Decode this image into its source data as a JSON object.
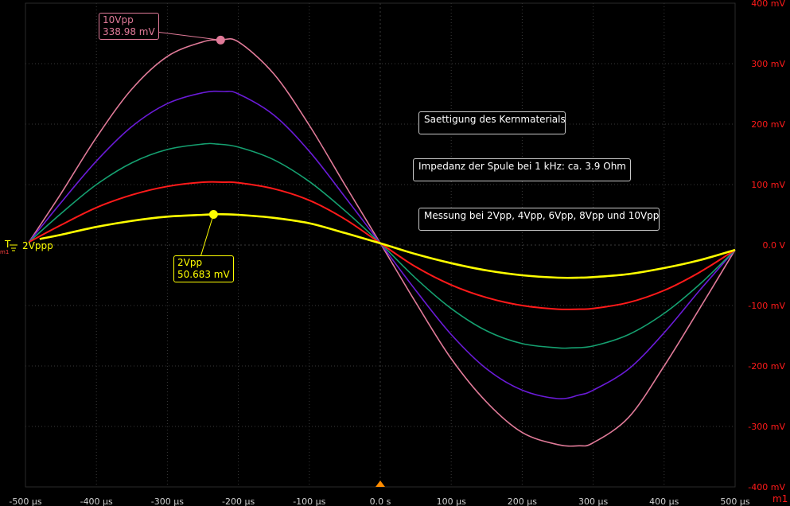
{
  "chart_data": {
    "type": "line",
    "xlabel": "",
    "ylabel": "",
    "xlim": [
      -500,
      500
    ],
    "ylim": [
      -400,
      400
    ],
    "x_ticks": [
      -500,
      -400,
      -300,
      -200,
      -100,
      0,
      100,
      200,
      300,
      400,
      500
    ],
    "x_tick_labels": [
      "-500 µs",
      "-400 µs",
      "-300 µs",
      "-200 µs",
      "-100 µs",
      "0.0 s",
      "100 µs",
      "200 µs",
      "300 µs",
      "400 µs",
      "500 µs"
    ],
    "y_ticks": [
      400,
      300,
      200,
      100,
      0,
      -100,
      -200,
      -300,
      -400
    ],
    "y_tick_labels": [
      "400 mV",
      "300 mV",
      "200 mV",
      "100 mV",
      "0.0 V",
      "-100 mV",
      "-200 mV",
      "-300 mV",
      "-400 mV"
    ],
    "grid": true,
    "series": [
      {
        "name": "2Vpp",
        "color": "#ffff00",
        "x": [
          -480,
          -450,
          -400,
          -350,
          -300,
          -250,
          -230,
          -200,
          -150,
          -100,
          -50,
          0,
          50,
          100,
          150,
          200,
          250,
          280,
          300,
          350,
          400,
          450,
          500
        ],
        "y": [
          10,
          17,
          30,
          40,
          47,
          50,
          51,
          50,
          45,
          36,
          20,
          3,
          -15,
          -30,
          -42,
          -50,
          -54,
          -54,
          -53,
          -48,
          -38,
          -25,
          -8
        ]
      },
      {
        "name": "4Vpp",
        "color": "#ff1a1a",
        "x": [
          -495,
          -450,
          -400,
          -350,
          -300,
          -250,
          -220,
          -200,
          -150,
          -100,
          -50,
          0,
          50,
          100,
          150,
          200,
          250,
          280,
          300,
          350,
          400,
          450,
          500
        ],
        "y": [
          5,
          33,
          62,
          83,
          97,
          104,
          104,
          103,
          93,
          74,
          43,
          3,
          -36,
          -66,
          -87,
          -100,
          -106,
          -106,
          -105,
          -95,
          -75,
          -45,
          -8
        ]
      },
      {
        "name": "6Vpp",
        "color": "#15a070",
        "x": [
          -495,
          -450,
          -400,
          -350,
          -300,
          -250,
          -230,
          -200,
          -150,
          -100,
          -50,
          0,
          50,
          100,
          150,
          200,
          250,
          270,
          300,
          350,
          400,
          450,
          500
        ],
        "y": [
          5,
          52,
          100,
          136,
          158,
          167,
          167,
          162,
          141,
          105,
          57,
          3,
          -55,
          -105,
          -142,
          -163,
          -170,
          -170,
          -167,
          -148,
          -113,
          -65,
          -8
        ]
      },
      {
        "name": "8Vpp",
        "color": "#6a1bd8",
        "x": [
          -495,
          -450,
          -400,
          -350,
          -300,
          -250,
          -220,
          -200,
          -150,
          -100,
          -50,
          0,
          50,
          100,
          150,
          200,
          250,
          280,
          300,
          350,
          400,
          450,
          500
        ],
        "y": [
          5,
          70,
          139,
          196,
          234,
          252,
          254,
          250,
          215,
          155,
          80,
          3,
          -75,
          -148,
          -205,
          -240,
          -254,
          -248,
          -240,
          -205,
          -145,
          -75,
          -8
        ]
      },
      {
        "name": "10Vpp",
        "color": "#e07a98",
        "x": [
          -495,
          -450,
          -400,
          -350,
          -300,
          -250,
          -225,
          -200,
          -150,
          -100,
          -50,
          0,
          50,
          100,
          150,
          200,
          250,
          280,
          300,
          350,
          400,
          450,
          500
        ],
        "y": [
          5,
          85,
          178,
          258,
          312,
          336,
          339,
          336,
          283,
          198,
          100,
          3,
          -95,
          -188,
          -260,
          -310,
          -330,
          -332,
          -327,
          -285,
          -200,
          -105,
          -8
        ]
      }
    ],
    "cursors": [
      {
        "series": "10Vpp",
        "x": -225,
        "y": 338.98
      },
      {
        "series": "2Vpp",
        "x": -235,
        "y": 50.683
      }
    ],
    "trigger_x": 0
  },
  "cursor_labels": {
    "c10_name": "10Vpp",
    "c10_value": "338.98 mV",
    "c2_name": "2Vpp",
    "c2_value": "50.683 mV"
  },
  "annotations": {
    "a1": "Saettigung des Kernmaterials",
    "a2": "Impedanz der Spule bei 1 kHz: ca. 3.9 Ohm",
    "a3": "Messung bei 2Vpp, 4Vpp, 6Vpp, 8Vpp und 10Vpp"
  },
  "channel_marker": {
    "trigger_label": "T",
    "channel_label": "2Vppp",
    "ref_label": "m1"
  },
  "corner_label": "m1",
  "colors": {
    "grid": "#3a3a3a",
    "x_tick_text": "#d0d0d0",
    "y_tick_text": "#ff1a1a",
    "trigger_marker": "#ff8c00"
  }
}
